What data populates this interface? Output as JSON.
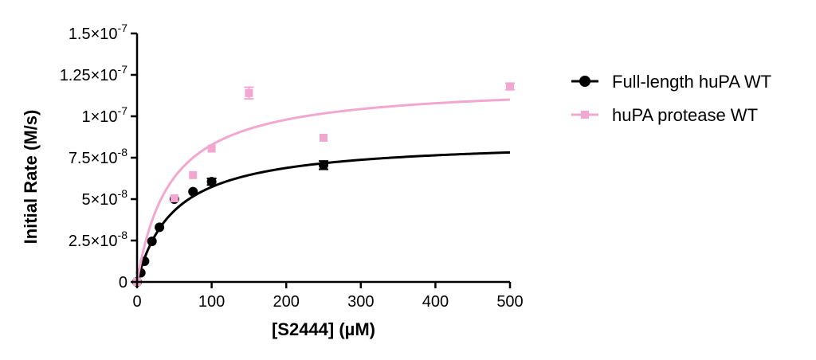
{
  "chart_data": {
    "type": "scatter",
    "title": "",
    "xlabel": "[S2444] (µM)",
    "ylabel": "Initial Rate (M/s)",
    "xlim": [
      0,
      500
    ],
    "ylim": [
      0,
      1.5e-07
    ],
    "x_ticks": [
      0,
      100,
      200,
      300,
      400,
      500
    ],
    "x_tick_labels": [
      "0",
      "100",
      "200",
      "300",
      "400",
      "500"
    ],
    "y_ticks": [
      0,
      2.5e-08,
      5e-08,
      7.5e-08,
      1e-07,
      1.25e-07,
      1.5e-07
    ],
    "y_tick_labels": [
      {
        "mant": "0",
        "exp": ""
      },
      {
        "mant": "2.5×10",
        "exp": "-8"
      },
      {
        "mant": "5×10",
        "exp": "-8"
      },
      {
        "mant": "7.5×10",
        "exp": "-8"
      },
      {
        "mant": "1×10",
        "exp": "-7"
      },
      {
        "mant": "1.25×10",
        "exp": "-7"
      },
      {
        "mant": "1.5×10",
        "exp": "-7"
      }
    ],
    "grid": false,
    "legend_position": "right",
    "series": [
      {
        "name": "Full-length huPA WT",
        "color": "#000000",
        "marker": "circle",
        "points": [
          {
            "x": 0,
            "y": 0,
            "err": 0
          },
          {
            "x": 5,
            "y": 5.5e-09,
            "err": 0
          },
          {
            "x": 10,
            "y": 1.25e-08,
            "err": 0
          },
          {
            "x": 20,
            "y": 2.45e-08,
            "err": 0
          },
          {
            "x": 30,
            "y": 3.3e-08,
            "err": 0
          },
          {
            "x": 50,
            "y": 5e-08,
            "err": 0
          },
          {
            "x": 75,
            "y": 5.45e-08,
            "err": 0
          },
          {
            "x": 100,
            "y": 6.05e-08,
            "err": 2e-09
          },
          {
            "x": 250,
            "y": 7.05e-08,
            "err": 2.5e-09
          }
        ],
        "fit": {
          "model": "michaelis-menten",
          "vmax": 8.6e-08,
          "km": 50
        }
      },
      {
        "name": "huPA protease WT",
        "color": "#f2a7d0",
        "marker": "square",
        "points": [
          {
            "x": 0,
            "y": 0,
            "err": 0
          },
          {
            "x": 50,
            "y": 5.05e-08,
            "err": 0
          },
          {
            "x": 75,
            "y": 6.45e-08,
            "err": 0
          },
          {
            "x": 100,
            "y": 8.05e-08,
            "err": 0
          },
          {
            "x": 150,
            "y": 1.14e-07,
            "err": 3.5e-09
          },
          {
            "x": 250,
            "y": 8.7e-08,
            "err": 0
          },
          {
            "x": 500,
            "y": 1.18e-07,
            "err": 2e-09
          }
        ],
        "fit": {
          "model": "michaelis-menten",
          "vmax": 1.2e-07,
          "km": 45
        }
      }
    ]
  }
}
